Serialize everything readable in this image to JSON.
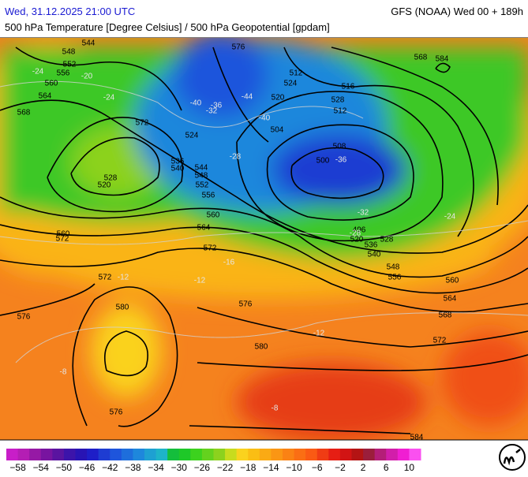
{
  "header": {
    "title_left": "Wed, 31.12.2025 21:00 UTC",
    "title_right": "GFS (NOAA) Wed 00 + 189h",
    "subtitle": "500 hPa Temperature [Degree Celsius] / 500 hPa Geopotential [gpdam]"
  },
  "contour_labels": [
    "544",
    "548",
    "552",
    "556",
    "560",
    "564",
    "568",
    "572",
    "528",
    "520",
    "524",
    "536",
    "540",
    "544",
    "548",
    "552",
    "556",
    "560",
    "564",
    "572",
    "576",
    "512",
    "524",
    "520",
    "516",
    "528",
    "512",
    "504",
    "508",
    "500",
    "496",
    "520",
    "528",
    "536",
    "540",
    "548",
    "556",
    "560",
    "564",
    "568",
    "572",
    "576",
    "580",
    "584",
    "568",
    "572",
    "576",
    "580",
    "560",
    "572",
    "576",
    "584"
  ],
  "temperature_labels": [
    "-24",
    "-20",
    "-24",
    "-28",
    "-40",
    "-36",
    "-32",
    "-44",
    "-40",
    "-36",
    "-32",
    "-28",
    "-24",
    "-16",
    "-12",
    "-12",
    "-8",
    "-12",
    "-8"
  ],
  "colorbar": {
    "range": [
      -60,
      12
    ],
    "ticks": [
      {
        "value": -58,
        "label": "−58"
      },
      {
        "value": -54,
        "label": "−54"
      },
      {
        "value": -50,
        "label": "−50"
      },
      {
        "value": -46,
        "label": "−46"
      },
      {
        "value": -42,
        "label": "−42"
      },
      {
        "value": -38,
        "label": "−38"
      },
      {
        "value": -34,
        "label": "−34"
      },
      {
        "value": -30,
        "label": "−30"
      },
      {
        "value": -26,
        "label": "−26"
      },
      {
        "value": -22,
        "label": "−22"
      },
      {
        "value": -18,
        "label": "−18"
      },
      {
        "value": -14,
        "label": "−14"
      },
      {
        "value": -10,
        "label": "−10"
      },
      {
        "value": -6,
        "label": "−6"
      },
      {
        "value": -2,
        "label": "−2"
      },
      2,
      6,
      10
    ],
    "colors": [
      "#c81ec8",
      "#b41eb4",
      "#9619a5",
      "#7814a0",
      "#5a14a0",
      "#3c14aa",
      "#2814b4",
      "#1e1ec8",
      "#1e3cd2",
      "#1e55dc",
      "#1e6edc",
      "#1e87dc",
      "#1ea0d2",
      "#1eb4c8",
      "#14be3c",
      "#1ec828",
      "#3cd21e",
      "#64d21e",
      "#8cd21e",
      "#c8dc1e",
      "#fad21e",
      "#fabe14",
      "#faaa14",
      "#fa9614",
      "#fa8214",
      "#fa6e14",
      "#fa5a14",
      "#f03c14",
      "#e61e14",
      "#d21414",
      "#b41414",
      "#9b1e3c",
      "#b41e78",
      "#d21eaa",
      "#f01ed2",
      "#fa50f0"
    ]
  }
}
